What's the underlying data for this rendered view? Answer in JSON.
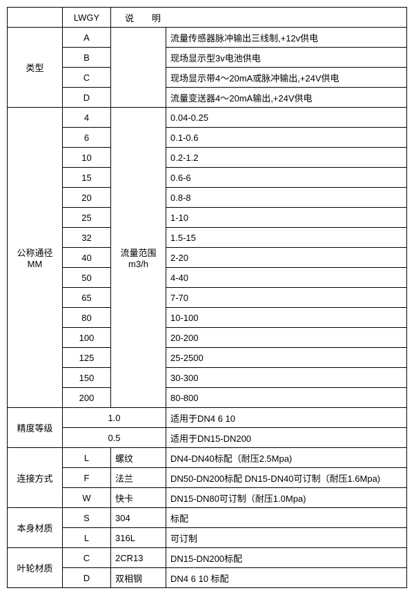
{
  "header": {
    "lwgy": "LWGY",
    "desc": "说明"
  },
  "type": {
    "label": "类型",
    "rows": [
      {
        "code": "A",
        "desc": "流量传感器脉冲输出三线制,+12v供电"
      },
      {
        "code": "B",
        "desc": "现场显示型3v电池供电"
      },
      {
        "code": "C",
        "desc": "现场显示带4～20mA或脉冲输出,+24V供电"
      },
      {
        "code": "D",
        "desc": "流量变送器4～20mA输出,+24V供电"
      }
    ]
  },
  "diameter": {
    "label": "公称通径\nMM",
    "range_label": "流量范围\nm3/h",
    "rows": [
      {
        "code": "4",
        "range": "0.04-0.25"
      },
      {
        "code": "6",
        "range": "0.1-0.6"
      },
      {
        "code": "10",
        "range": "0.2-1.2"
      },
      {
        "code": "15",
        "range": "0.6-6"
      },
      {
        "code": "20",
        "range": "0.8-8"
      },
      {
        "code": "25",
        "range": "1-10"
      },
      {
        "code": "32",
        "range": "1.5-15"
      },
      {
        "code": "40",
        "range": "2-20"
      },
      {
        "code": "50",
        "range": "4-40"
      },
      {
        "code": "65",
        "range": "7-70"
      },
      {
        "code": "80",
        "range": "10-100"
      },
      {
        "code": "100",
        "range": "20-200"
      },
      {
        "code": "125",
        "range": "25-2500"
      },
      {
        "code": "150",
        "range": "30-300"
      },
      {
        "code": "200",
        "range": "80-800"
      }
    ]
  },
  "accuracy": {
    "label": "精度等级",
    "rows": [
      {
        "val": "1.0",
        "apply": "适用于DN4  6  10"
      },
      {
        "val": "0.5",
        "apply": "适用于DN15-DN200"
      }
    ]
  },
  "connect": {
    "label": "连接方式",
    "rows": [
      {
        "code": "L",
        "name": "螺纹",
        "desc": "DN4-DN40标配（耐压2.5Mpa)"
      },
      {
        "code": "F",
        "name": "法兰",
        "desc": "DN50-DN200标配 DN15-DN40可订制（耐压1.6Mpa)"
      },
      {
        "code": "W",
        "name": "快卡",
        "desc": "DN15-DN80可订制（耐压1.0Mpa)"
      }
    ]
  },
  "body_mat": {
    "label": "本身材质",
    "rows": [
      {
        "code": "S",
        "name": "304",
        "desc": "标配"
      },
      {
        "code": "L",
        "name": "316L",
        "desc": "可订制"
      }
    ]
  },
  "impeller_mat": {
    "label": "叶轮材质",
    "rows": [
      {
        "code": "C",
        "name": "2CR13",
        "desc": "DN15-DN200标配"
      },
      {
        "code": "D",
        "name": "双相钢",
        "desc": "DN4 6 10 标配"
      }
    ]
  }
}
